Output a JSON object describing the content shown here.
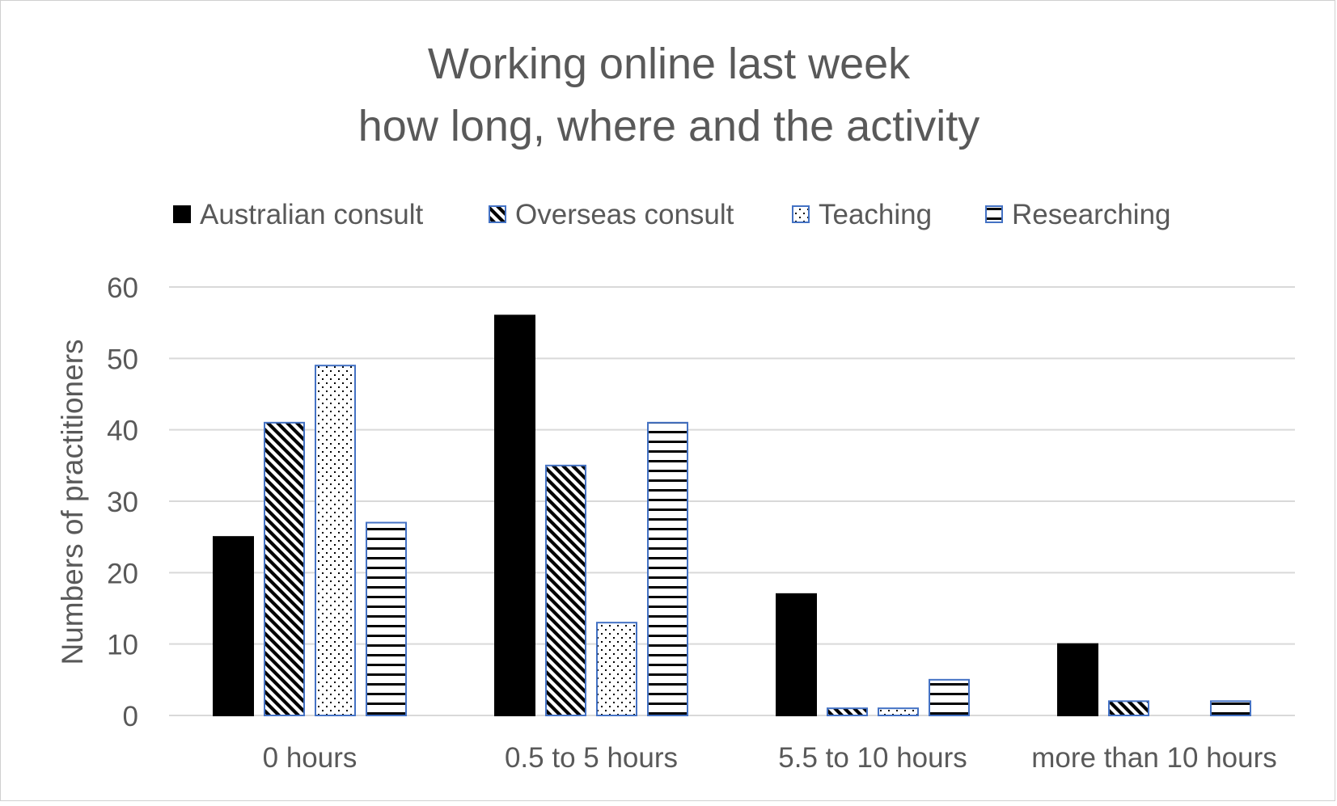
{
  "chart_data": {
    "type": "bar",
    "title": [
      "Working online last week",
      "how long, where and the activity"
    ],
    "xlabel": "",
    "ylabel": "Numbers of practitioners",
    "categories": [
      "0 hours",
      "0.5 to 5 hours",
      "5.5 to 10 hours",
      "more than 10 hours"
    ],
    "ylim": [
      0,
      60
    ],
    "yticks": [
      0,
      10,
      20,
      30,
      40,
      50,
      60
    ],
    "grid": true,
    "legend": "top",
    "series": [
      {
        "name": "Australian consult",
        "values": [
          25,
          56,
          17,
          10
        ],
        "pattern": "solid"
      },
      {
        "name": "Overseas consult",
        "values": [
          41,
          35,
          1,
          2
        ],
        "pattern": "diagonal"
      },
      {
        "name": "Teaching",
        "values": [
          49,
          13,
          1,
          0
        ],
        "pattern": "dots"
      },
      {
        "name": "Researching",
        "values": [
          27,
          41,
          5,
          2
        ],
        "pattern": "horizontal"
      }
    ],
    "colors": {
      "fill": "#000000",
      "outline": "#4472c4",
      "grid": "#d9d9d9",
      "text": "#595959"
    }
  }
}
